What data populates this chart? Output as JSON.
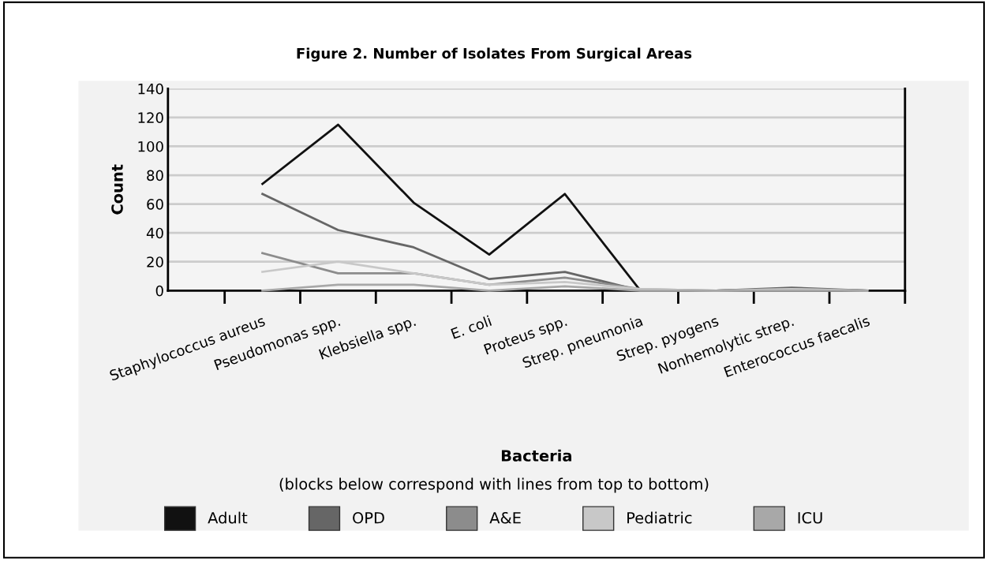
{
  "chart_data": {
    "type": "line",
    "title": "Figure 2. Number of Isolates From Surgical Areas",
    "xlabel": "Bacteria",
    "ylabel": "Count",
    "annotations": [
      "(blocks below correspond with lines from top to bottom)"
    ],
    "categories": [
      "Staphylococcus aureus",
      "Pseudomonas spp.",
      "Klebsiella spp.",
      "E. coli",
      "Proteus spp.",
      "Strep. pneumonia",
      "Strep. pyogens",
      "Nonhemolytic strep.",
      "Enterococcus faecalis"
    ],
    "series": [
      {
        "name": "Adult",
        "color": "#111111",
        "values": [
          74,
          115,
          61,
          25,
          67,
          0,
          0,
          1,
          0
        ]
      },
      {
        "name": "OPD",
        "color": "#666666",
        "values": [
          67,
          42,
          30,
          8,
          13,
          0,
          0,
          2,
          0
        ]
      },
      {
        "name": "A&E",
        "color": "#8c8c8c",
        "values": [
          26,
          12,
          12,
          4,
          9,
          1,
          0,
          1,
          0
        ]
      },
      {
        "name": "Pediatric",
        "color": "#c8c8c8",
        "values": [
          13,
          20,
          12,
          4,
          6,
          1,
          0,
          1,
          0
        ]
      },
      {
        "name": "ICU",
        "color": "#a8a8a8",
        "values": [
          0,
          4,
          4,
          0,
          3,
          0,
          0,
          0,
          0
        ]
      }
    ],
    "ylim": [
      0,
      140
    ],
    "yticks": [
      0,
      20,
      40,
      60,
      80,
      100,
      120,
      140
    ],
    "grid": "y",
    "legend": "bottom",
    "marker": "none",
    "line_style": "solid"
  }
}
